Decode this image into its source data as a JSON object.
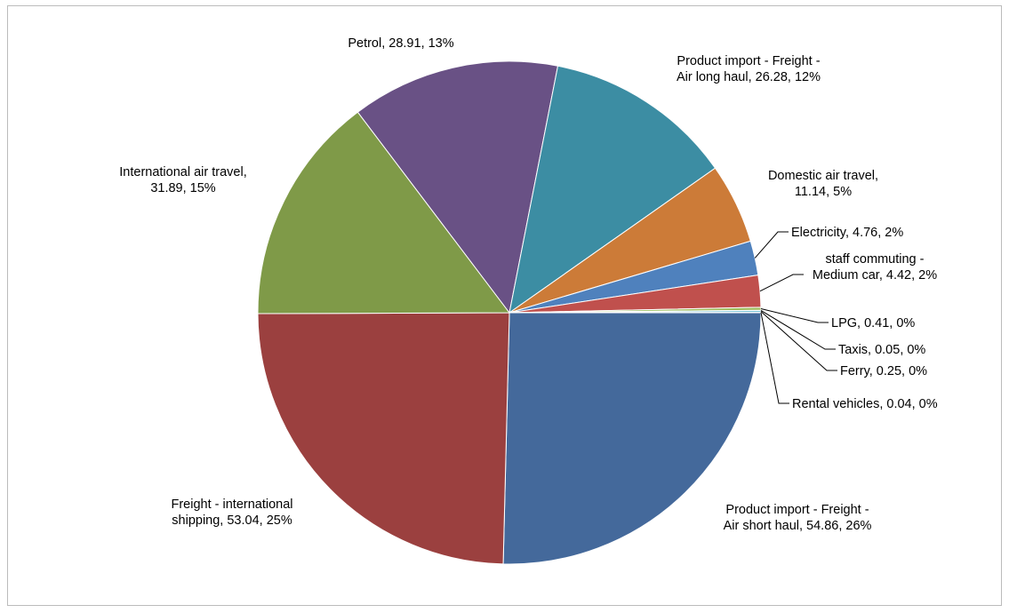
{
  "chart_data": {
    "type": "pie",
    "title": "",
    "slices": [
      {
        "label_lines": [
          "Product import - Freight -",
          "Air short haul, 54.86, 26%"
        ],
        "name": "Product import - Freight - Air short haul",
        "value": 54.86,
        "percent": "26%",
        "color": "#44699B"
      },
      {
        "label_lines": [
          "Freight  -  international",
          "shipping, 53.04, 25%"
        ],
        "name": "Freight - international shipping",
        "value": 53.04,
        "percent": "25%",
        "color": "#9B403F"
      },
      {
        "label_lines": [
          "International air travel,",
          "31.89, 15%"
        ],
        "name": "International air travel",
        "value": 31.89,
        "percent": "15%",
        "color": "#7F9A48"
      },
      {
        "label_lines": [
          "Petrol, 28.91, 13%"
        ],
        "name": "Petrol",
        "value": 28.91,
        "percent": "13%",
        "color": "#695185"
      },
      {
        "label_lines": [
          "Product import - Freight -",
          "Air long haul, 26.28, 12%"
        ],
        "name": "Product import - Freight - Air long haul",
        "value": 26.28,
        "percent": "12%",
        "color": "#3C8DA3"
      },
      {
        "label_lines": [
          "Domestic air travel,",
          "11.14, 5%"
        ],
        "name": "Domestic air travel",
        "value": 11.14,
        "percent": "5%",
        "color": "#CC7B38"
      },
      {
        "label_lines": [
          "Electricity, 4.76, 2%"
        ],
        "name": "Electricity",
        "value": 4.76,
        "percent": "2%",
        "color": "#4F81BD"
      },
      {
        "label_lines": [
          "staff commuting  -",
          "Medium car, 4.42, 2%"
        ],
        "name": "staff commuting - Medium car",
        "value": 4.42,
        "percent": "2%",
        "color": "#C0504D"
      },
      {
        "label_lines": [
          "LPG, 0.41, 0%"
        ],
        "name": "LPG",
        "value": 0.41,
        "percent": "0%",
        "color": "#9BBB59"
      },
      {
        "label_lines": [
          "Taxis, 0.05, 0%"
        ],
        "name": "Taxis",
        "value": 0.05,
        "percent": "0%",
        "color": "#8064A2"
      },
      {
        "label_lines": [
          "Ferry, 0.25, 0%"
        ],
        "name": "Ferry",
        "value": 0.25,
        "percent": "0%",
        "color": "#4BACC6"
      },
      {
        "label_lines": [
          "Rental vehicles, 0.04, 0%"
        ],
        "name": "Rental vehicles",
        "value": 0.04,
        "percent": "0%",
        "color": "#F79646"
      }
    ],
    "start": "3 o'clock",
    "direction": "clockwise",
    "legend": "none",
    "data_labels": "category, value, percentage"
  }
}
